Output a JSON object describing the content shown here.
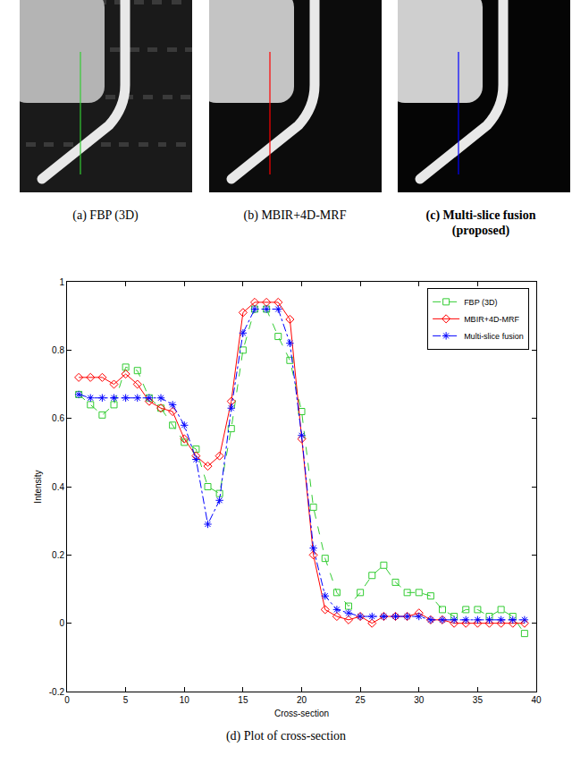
{
  "panels": [
    {
      "caption": "(a) FBP (3D)"
    },
    {
      "caption": "(b) MBIR+4D-MRF"
    },
    {
      "caption": "(c) Multi-slice fusion (proposed)"
    }
  ],
  "chart_data": {
    "type": "line",
    "caption": "(d) Plot of cross-section",
    "x_label": "Cross-section",
    "y_label": "Intensity",
    "x": [
      1,
      2,
      3,
      4,
      5,
      6,
      7,
      8,
      9,
      10,
      11,
      12,
      13,
      14,
      15,
      16,
      17,
      18,
      19,
      20,
      21,
      22,
      23,
      24,
      25,
      26,
      27,
      28,
      29,
      30,
      31,
      32,
      33,
      34,
      35,
      36,
      37,
      38,
      39
    ],
    "series": [
      {
        "name": "FBP (3D)",
        "color": "#33cc33",
        "marker": "square-open",
        "line_style": "dash",
        "values": [
          0.67,
          0.64,
          0.61,
          0.64,
          0.75,
          0.74,
          0.66,
          0.63,
          0.58,
          0.53,
          0.51,
          0.4,
          0.38,
          0.57,
          0.8,
          0.92,
          0.92,
          0.84,
          0.77,
          0.62,
          0.34,
          0.19,
          0.09,
          0.05,
          0.09,
          0.14,
          0.17,
          0.12,
          0.09,
          0.09,
          0.08,
          0.04,
          0.02,
          0.04,
          0.04,
          0.02,
          0.04,
          0.02,
          -0.03
        ]
      },
      {
        "name": "MBIR+4D-MRF",
        "color": "#ff0000",
        "marker": "diamond-open",
        "line_style": "solid",
        "values": [
          0.72,
          0.72,
          0.72,
          0.7,
          0.73,
          0.7,
          0.65,
          0.63,
          0.62,
          0.54,
          0.49,
          0.46,
          0.49,
          0.65,
          0.91,
          0.94,
          0.94,
          0.94,
          0.89,
          0.54,
          0.2,
          0.04,
          0.02,
          0.01,
          0.02,
          0.0,
          0.02,
          0.02,
          0.02,
          0.03,
          0.01,
          0.01,
          0.0,
          0.0,
          0.0,
          0.0,
          0.0,
          0.0,
          0.0
        ]
      },
      {
        "name": "Multi-slice fusion",
        "color": "#0000ff",
        "marker": "asterisk-open",
        "line_style": "dashdot",
        "values": [
          0.67,
          0.66,
          0.66,
          0.66,
          0.66,
          0.66,
          0.66,
          0.66,
          0.64,
          0.58,
          0.48,
          0.29,
          0.36,
          0.63,
          0.85,
          0.92,
          0.92,
          0.92,
          0.82,
          0.55,
          0.22,
          0.08,
          0.04,
          0.03,
          0.02,
          0.02,
          0.02,
          0.02,
          0.02,
          0.02,
          0.01,
          0.01,
          0.01,
          0.01,
          0.01,
          0.01,
          0.01,
          0.01,
          0.01
        ]
      }
    ],
    "xlim": [
      0,
      40
    ],
    "xticks": [
      0,
      5,
      10,
      15,
      20,
      25,
      30,
      35,
      40
    ],
    "ylim": [
      -0.2,
      1
    ],
    "yticks": [
      -0.2,
      0,
      0.2,
      0.4,
      0.6,
      0.8,
      1
    ],
    "grid": false,
    "legend": "upper right"
  }
}
